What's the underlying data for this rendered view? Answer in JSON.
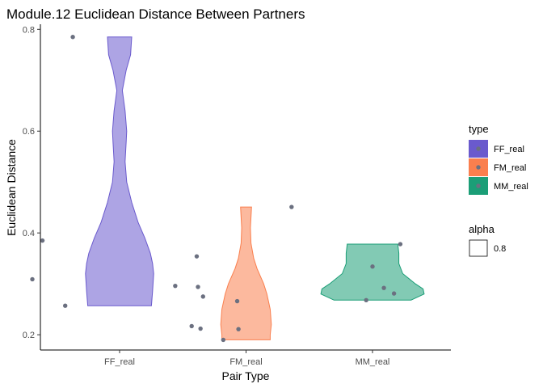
{
  "chart_data": {
    "type": "violin",
    "title": "Module.12 Euclidean Distance Between Partners",
    "xlabel": "Pair Type",
    "ylabel": "Euclidean Distance",
    "categories": [
      "FF_real",
      "FM_real",
      "MM_real"
    ],
    "ylim": [
      0.17,
      0.81
    ],
    "yticks": [
      0.2,
      0.4,
      0.6,
      0.8
    ],
    "ytick_labels": [
      "0.2",
      "0.4",
      "0.6",
      "0.8"
    ],
    "grid": false,
    "legend_placement": "right",
    "series": [
      {
        "name": "FF_real",
        "color": "#6A5ACD",
        "min": 0.257,
        "max": 0.785,
        "profile": [
          [
            0.257,
            0.58
          ],
          [
            0.285,
            0.6
          ],
          [
            0.32,
            0.62
          ],
          [
            0.34,
            0.6
          ],
          [
            0.36,
            0.56
          ],
          [
            0.39,
            0.46
          ],
          [
            0.42,
            0.34
          ],
          [
            0.46,
            0.22
          ],
          [
            0.5,
            0.13
          ],
          [
            0.54,
            0.1
          ],
          [
            0.58,
            0.12
          ],
          [
            0.6,
            0.13
          ],
          [
            0.64,
            0.1
          ],
          [
            0.68,
            0.05
          ],
          [
            0.72,
            0.12
          ],
          [
            0.75,
            0.2
          ],
          [
            0.785,
            0.22
          ]
        ],
        "points": [
          {
            "x": 0.31,
            "y": 0.309
          },
          {
            "x": 0.39,
            "y": 0.385
          },
          {
            "x": 0.57,
            "y": 0.257
          },
          {
            "x": 0.63,
            "y": 0.785
          }
        ]
      },
      {
        "name": "FM_real",
        "color": "#FA7F4E",
        "min": 0.19,
        "max": 0.451,
        "profile": [
          [
            0.19,
            0.44
          ],
          [
            0.2,
            0.44
          ],
          [
            0.22,
            0.46
          ],
          [
            0.25,
            0.44
          ],
          [
            0.28,
            0.38
          ],
          [
            0.3,
            0.32
          ],
          [
            0.33,
            0.2
          ],
          [
            0.35,
            0.14
          ],
          [
            0.38,
            0.09
          ],
          [
            0.41,
            0.08
          ],
          [
            0.451,
            0.1
          ]
        ],
        "points": [
          {
            "x": 1.44,
            "y": 0.296
          },
          {
            "x": 1.57,
            "y": 0.217
          },
          {
            "x": 1.61,
            "y": 0.354
          },
          {
            "x": 1.62,
            "y": 0.294
          },
          {
            "x": 1.64,
            "y": 0.212
          },
          {
            "x": 1.66,
            "y": 0.275
          },
          {
            "x": 1.82,
            "y": 0.19
          },
          {
            "x": 1.93,
            "y": 0.266
          },
          {
            "x": 1.94,
            "y": 0.211
          },
          {
            "x": 2.36,
            "y": 0.451
          }
        ]
      },
      {
        "name": "MM_real",
        "color": "#1B9E77",
        "min": 0.268,
        "max": 0.378,
        "profile": [
          [
            0.268,
            0.7
          ],
          [
            0.28,
            0.94
          ],
          [
            0.29,
            0.92
          ],
          [
            0.3,
            0.78
          ],
          [
            0.32,
            0.55
          ],
          [
            0.34,
            0.48
          ],
          [
            0.36,
            0.48
          ],
          [
            0.378,
            0.46
          ]
        ],
        "points": [
          {
            "x": 2.95,
            "y": 0.268
          },
          {
            "x": 3.0,
            "y": 0.334
          },
          {
            "x": 3.09,
            "y": 0.292
          },
          {
            "x": 3.17,
            "y": 0.281
          },
          {
            "x": 3.22,
            "y": 0.378
          }
        ]
      }
    ],
    "point_color": "#6B7080",
    "fill_opacity": 0.55
  },
  "legend": {
    "type_title": "type",
    "type_items": [
      "FF_real",
      "FM_real",
      "MM_real"
    ],
    "alpha_title": "alpha",
    "alpha_value": "0.8"
  }
}
